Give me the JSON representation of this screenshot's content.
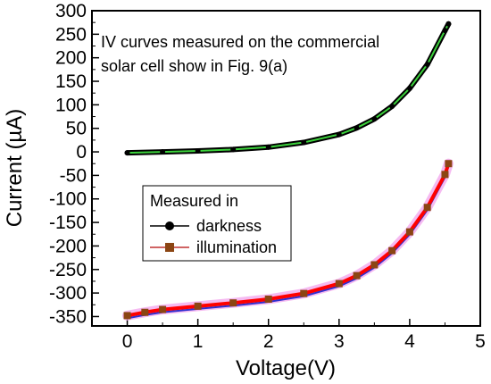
{
  "chart_data": {
    "type": "line",
    "title": "",
    "xlabel": "Voltage(V)",
    "ylabel": "Current (µA)",
    "xlim": [
      -0.5,
      5
    ],
    "ylim": [
      -370,
      300
    ],
    "x_ticks": [
      0,
      1,
      2,
      3,
      4,
      5
    ],
    "x_tick_labels": [
      "0",
      "1",
      "2",
      "3",
      "4",
      "5"
    ],
    "y_ticks": [
      300,
      250,
      200,
      150,
      100,
      50,
      0,
      -50,
      -100,
      -150,
      -200,
      -250,
      -300,
      -350
    ],
    "y_tick_labels": [
      "300",
      "250",
      "200",
      "150",
      "100",
      "50",
      "0",
      "-50",
      "-100",
      "-150",
      "-200",
      "-250",
      "-300",
      "-350"
    ],
    "grid": false,
    "annotation": [
      "IV curves measured on the commercial",
      "solar cell show in Fig. 9(a)"
    ],
    "legend": {
      "title": "Measured in",
      "placement": "center-left",
      "entries": [
        "darkness",
        "illumination"
      ]
    },
    "series": [
      {
        "name": "darkness",
        "color": "#000000",
        "fit_color": "#3cd23c",
        "marker": "circle",
        "x": [
          0,
          0.5,
          1,
          1.5,
          2,
          2.5,
          3,
          3.25,
          3.5,
          3.75,
          4,
          4.25,
          4.5,
          4.55
        ],
        "values": [
          -2,
          0,
          2,
          5,
          10,
          20,
          37,
          51,
          70,
          97,
          135,
          186,
          258,
          272
        ]
      },
      {
        "name": "illumination",
        "color": "#8b4513",
        "fit_colors": [
          "#ff0000",
          "#3030d0"
        ],
        "marker": "square",
        "x": [
          0,
          0.25,
          0.5,
          1,
          1.5,
          2,
          2.5,
          3,
          3.25,
          3.5,
          3.75,
          4,
          4.25,
          4.5,
          4.55
        ],
        "values": [
          -348,
          -341,
          -335,
          -328,
          -321,
          -313,
          -301,
          -280,
          -263,
          -240,
          -210,
          -170,
          -118,
          -48,
          -25
        ]
      }
    ]
  }
}
